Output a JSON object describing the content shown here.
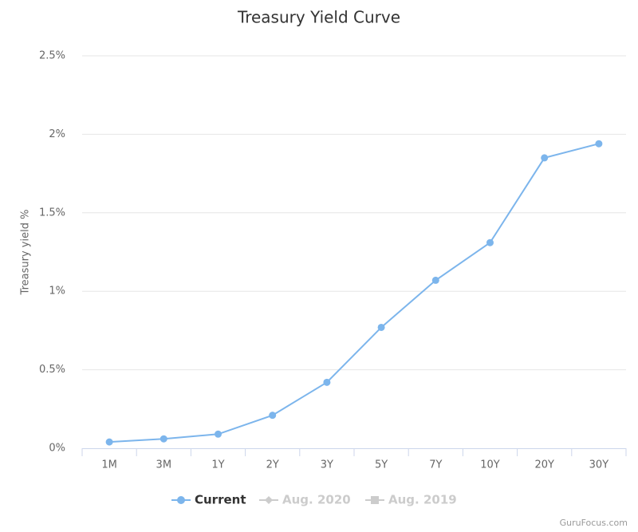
{
  "chart_data": {
    "type": "line",
    "title": "Treasury Yield Curve",
    "y_label": "Treasury yield %",
    "categories": [
      "1M",
      "3M",
      "1Y",
      "2Y",
      "3Y",
      "5Y",
      "7Y",
      "10Y",
      "20Y",
      "30Y"
    ],
    "series": [
      {
        "name": "Current",
        "color": "#7cb5ec",
        "marker": "circle",
        "visible": true,
        "values": [
          0.04,
          0.06,
          0.09,
          0.21,
          0.42,
          0.77,
          1.07,
          1.31,
          1.85,
          1.94
        ]
      },
      {
        "name": "Aug. 2020",
        "color": "#cccccc",
        "marker": "diamond",
        "visible": false,
        "values": [
          null,
          null,
          null,
          null,
          null,
          null,
          null,
          null,
          null,
          null
        ]
      },
      {
        "name": "Aug. 2019",
        "color": "#cccccc",
        "marker": "square",
        "visible": false,
        "values": [
          null,
          null,
          null,
          null,
          null,
          null,
          null,
          null,
          null,
          null
        ]
      }
    ],
    "ylim": [
      0,
      2.5
    ],
    "yticks": [
      {
        "value": 0,
        "label": "0%"
      },
      {
        "value": 0.5,
        "label": "0.5%"
      },
      {
        "value": 1,
        "label": "1%"
      },
      {
        "value": 1.5,
        "label": "1.5%"
      },
      {
        "value": 2,
        "label": "2%"
      },
      {
        "value": 2.5,
        "label": "2.5%"
      }
    ],
    "grid": true,
    "legend": "bottom",
    "credit": "GuruFocus.com"
  }
}
